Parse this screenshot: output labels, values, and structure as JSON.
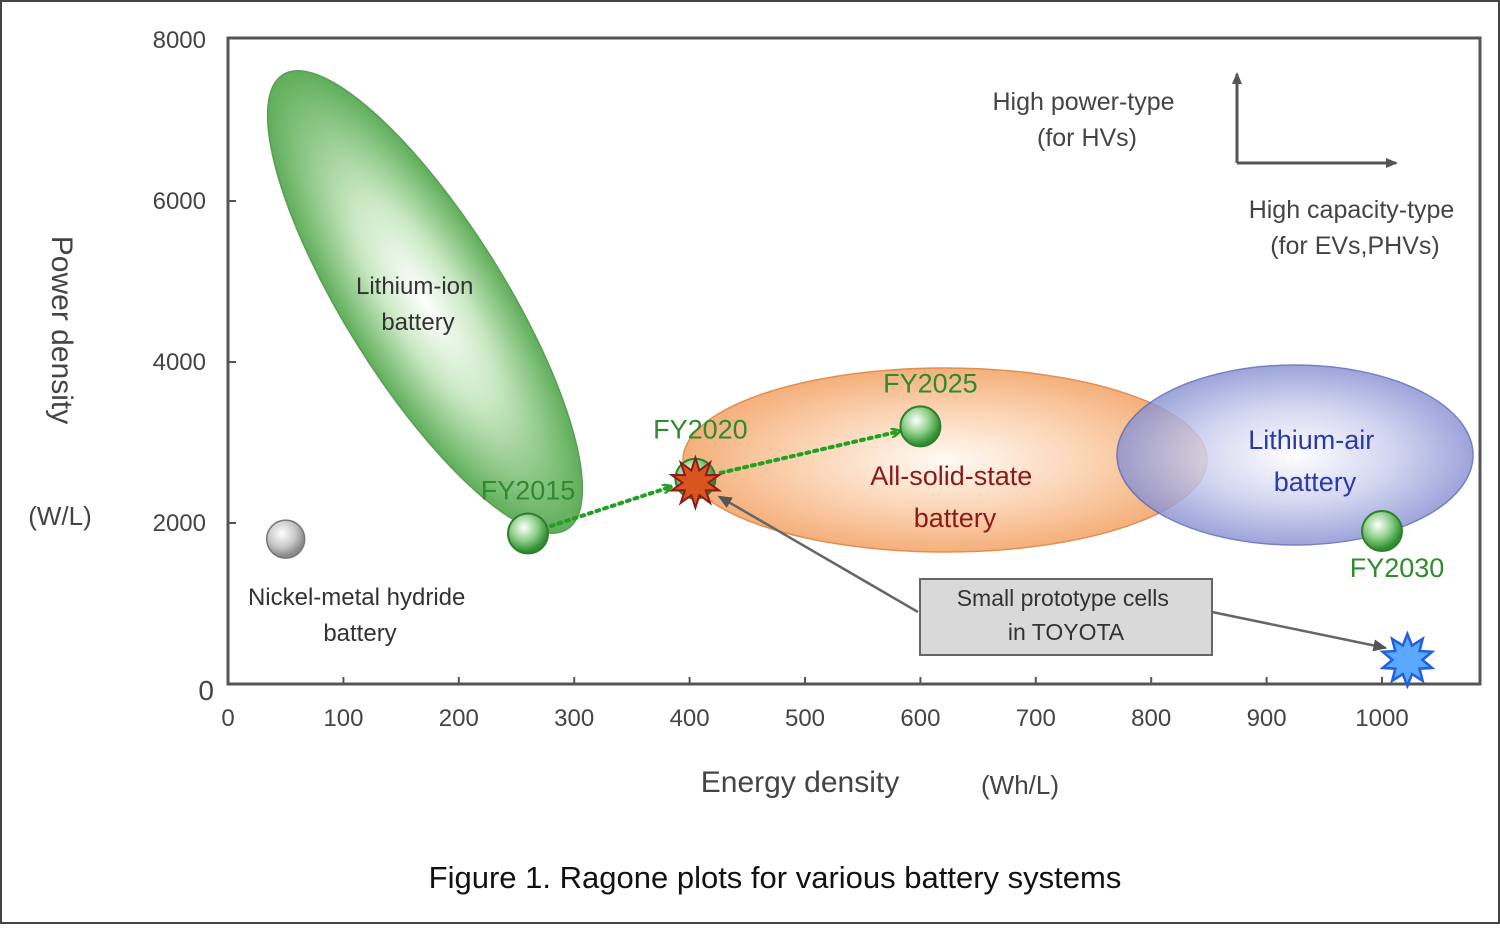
{
  "chart_data": {
    "type": "scatter",
    "caption": "Figure 1. Ragone plots for various battery systems",
    "xlabel": "Energy density",
    "xunit": "(Wh/L)",
    "ylabel": "Power density",
    "yunit": "(W/L)",
    "xlim": [
      0,
      1000
    ],
    "ylim": [
      0,
      8000
    ],
    "xticks": [
      "0",
      "100",
      "200",
      "300",
      "400",
      "500",
      "600",
      "700",
      "800",
      "900",
      "1000"
    ],
    "yticks": [
      "0",
      "2000",
      "4000",
      "6000",
      "8000"
    ],
    "regions": [
      {
        "label_lines": [
          "Lithium-ion",
          "battery"
        ],
        "cx": 165,
        "cy": 4550,
        "color": "#5cb85c"
      },
      {
        "label_lines": [
          "All-solid-state",
          "battery"
        ],
        "cx": 545,
        "cy": 2880,
        "color": "#f4a46a"
      },
      {
        "label_lines": [
          "Lithium-air",
          "battery"
        ],
        "cx": 940,
        "cy": 2880,
        "color": "#7080c8"
      }
    ],
    "points": [
      {
        "label": "FY2015",
        "x": 260,
        "y": 1870
      },
      {
        "label": "FY2020",
        "x": 405,
        "y": 2550
      },
      {
        "label": "FY2025",
        "x": 600,
        "y": 3200
      },
      {
        "label": "FY2030",
        "x": 1000,
        "y": 1900
      }
    ],
    "nimh": {
      "label_lines": [
        "Nickel-metal hydride",
        "battery"
      ],
      "x": 50,
      "y": 1800
    },
    "callout_lines": [
      "Small prototype cells",
      "in TOYOTA"
    ],
    "prototype_points": [
      {
        "x": 405,
        "y": 2550
      },
      {
        "x": 1022,
        "y": 300
      }
    ],
    "direction_legend": {
      "up_lines": [
        "High power-type",
        "(for HVs)"
      ],
      "right_lines": [
        "High capacity-type",
        "(for EVs,PHVs)"
      ]
    },
    "colors": {
      "axis": "#555555",
      "green_text": "#2e8b2e",
      "arrow_green": "#22a022",
      "solid_text": "#8b1a1a",
      "air_text": "#2a3aa8",
      "prototype_red": "#d9541e",
      "prototype_blue": "#5aa8ff"
    }
  }
}
